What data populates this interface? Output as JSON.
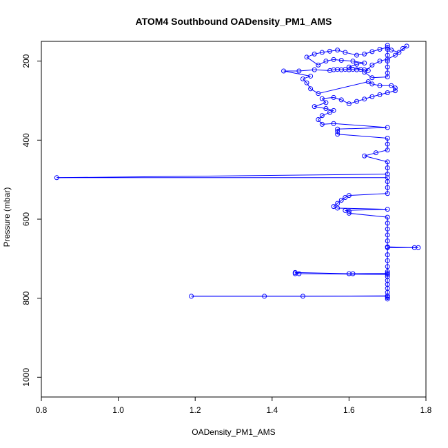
{
  "chart_data": {
    "type": "scatter",
    "title": "ATOM4 Southbound OADensity_PM1_AMS",
    "xlabel": "OADensity_PM1_AMS",
    "ylabel": "Pressure (mbar)",
    "xlim": [
      0.8,
      1.8
    ],
    "ylim": [
      1050,
      150
    ],
    "y_inverted": true,
    "x_ticks": [
      "0.8",
      "1.0",
      "1.2",
      "1.4",
      "1.6",
      "1.8"
    ],
    "x_tick_values": [
      0.8,
      1.0,
      1.2,
      1.4,
      1.6,
      1.8
    ],
    "y_ticks": [
      "200",
      "400",
      "600",
      "800",
      "1000"
    ],
    "y_tick_values": [
      200,
      400,
      600,
      800,
      1000
    ],
    "grid": false,
    "series_color": "#0000ff",
    "marker": "open-circle",
    "connected": true,
    "series": [
      {
        "points": [
          [
            1.7,
            802
          ],
          [
            1.7,
            798
          ],
          [
            1.7,
            795
          ],
          [
            1.19,
            795
          ],
          [
            1.38,
            795
          ],
          [
            1.48,
            795
          ],
          [
            1.7,
            794
          ],
          [
            1.7,
            785
          ],
          [
            1.7,
            775
          ],
          [
            1.7,
            765
          ],
          [
            1.7,
            755
          ],
          [
            1.7,
            745
          ],
          [
            1.7,
            740
          ],
          [
            1.46,
            738
          ],
          [
            1.47,
            738
          ],
          [
            1.46,
            735
          ],
          [
            1.6,
            738
          ],
          [
            1.61,
            738
          ],
          [
            1.7,
            737
          ],
          [
            1.7,
            733
          ],
          [
            1.7,
            720
          ],
          [
            1.7,
            705
          ],
          [
            1.7,
            690
          ],
          [
            1.7,
            672
          ],
          [
            1.78,
            672
          ],
          [
            1.77,
            672
          ],
          [
            1.7,
            670
          ],
          [
            1.7,
            655
          ],
          [
            1.7,
            640
          ],
          [
            1.7,
            625
          ],
          [
            1.7,
            610
          ],
          [
            1.7,
            595
          ],
          [
            1.6,
            585
          ],
          [
            1.6,
            580
          ],
          [
            1.59,
            578
          ],
          [
            1.7,
            575
          ],
          [
            1.57,
            572
          ],
          [
            1.56,
            568
          ],
          [
            1.57,
            560
          ],
          [
            1.58,
            552
          ],
          [
            1.59,
            545
          ],
          [
            1.6,
            540
          ],
          [
            1.7,
            535
          ],
          [
            1.7,
            520
          ],
          [
            1.7,
            505
          ],
          [
            1.7,
            495
          ],
          [
            0.84,
            495
          ],
          [
            1.7,
            486
          ],
          [
            1.7,
            470
          ],
          [
            1.7,
            455
          ],
          [
            1.64,
            440
          ],
          [
            1.67,
            432
          ],
          [
            1.7,
            425
          ],
          [
            1.7,
            410
          ],
          [
            1.7,
            395
          ],
          [
            1.57,
            385
          ],
          [
            1.57,
            378
          ],
          [
            1.57,
            372
          ],
          [
            1.7,
            368
          ],
          [
            1.56,
            358
          ],
          [
            1.53,
            360
          ],
          [
            1.52,
            348
          ],
          [
            1.53,
            338
          ],
          [
            1.55,
            330
          ],
          [
            1.56,
            325
          ],
          [
            1.54,
            320
          ],
          [
            1.51,
            315
          ],
          [
            1.54,
            305
          ],
          [
            1.53,
            295
          ],
          [
            1.56,
            292
          ],
          [
            1.58,
            298
          ],
          [
            1.6,
            308
          ],
          [
            1.62,
            302
          ],
          [
            1.64,
            296
          ],
          [
            1.66,
            290
          ],
          [
            1.68,
            285
          ],
          [
            1.7,
            280
          ],
          [
            1.72,
            275
          ],
          [
            1.72,
            268
          ],
          [
            1.71,
            262
          ],
          [
            1.68,
            262
          ],
          [
            1.66,
            258
          ],
          [
            1.65,
            252
          ],
          [
            1.52,
            282
          ],
          [
            1.5,
            270
          ],
          [
            1.49,
            255
          ],
          [
            1.48,
            245
          ],
          [
            1.5,
            238
          ],
          [
            1.43,
            225
          ],
          [
            1.47,
            225
          ],
          [
            1.51,
            222
          ],
          [
            1.55,
            224
          ],
          [
            1.56,
            222
          ],
          [
            1.57,
            221
          ],
          [
            1.58,
            222
          ],
          [
            1.59,
            221
          ],
          [
            1.6,
            222
          ],
          [
            1.61,
            221
          ],
          [
            1.62,
            222
          ],
          [
            1.63,
            221
          ],
          [
            1.64,
            222
          ],
          [
            1.65,
            224
          ],
          [
            1.6,
            215
          ],
          [
            1.62,
            208
          ],
          [
            1.64,
            205
          ],
          [
            1.61,
            200
          ],
          [
            1.58,
            198
          ],
          [
            1.56,
            196
          ],
          [
            1.54,
            200
          ],
          [
            1.52,
            210
          ],
          [
            1.49,
            190
          ],
          [
            1.51,
            182
          ],
          [
            1.53,
            178
          ],
          [
            1.55,
            175
          ],
          [
            1.57,
            172
          ],
          [
            1.59,
            178
          ],
          [
            1.62,
            185
          ],
          [
            1.64,
            182
          ],
          [
            1.66,
            176
          ],
          [
            1.68,
            170
          ],
          [
            1.7,
            165
          ],
          [
            1.71,
            172
          ],
          [
            1.73,
            178
          ],
          [
            1.74,
            168
          ],
          [
            1.75,
            162
          ],
          [
            1.72,
            185
          ],
          [
            1.7,
            195
          ],
          [
            1.68,
            200
          ],
          [
            1.66,
            210
          ],
          [
            1.64,
            228
          ],
          [
            1.66,
            242
          ],
          [
            1.7,
            240
          ],
          [
            1.7,
            230
          ],
          [
            1.7,
            215
          ],
          [
            1.7,
            200
          ],
          [
            1.7,
            185
          ],
          [
            1.7,
            170
          ],
          [
            1.7,
            160
          ]
        ]
      }
    ]
  }
}
